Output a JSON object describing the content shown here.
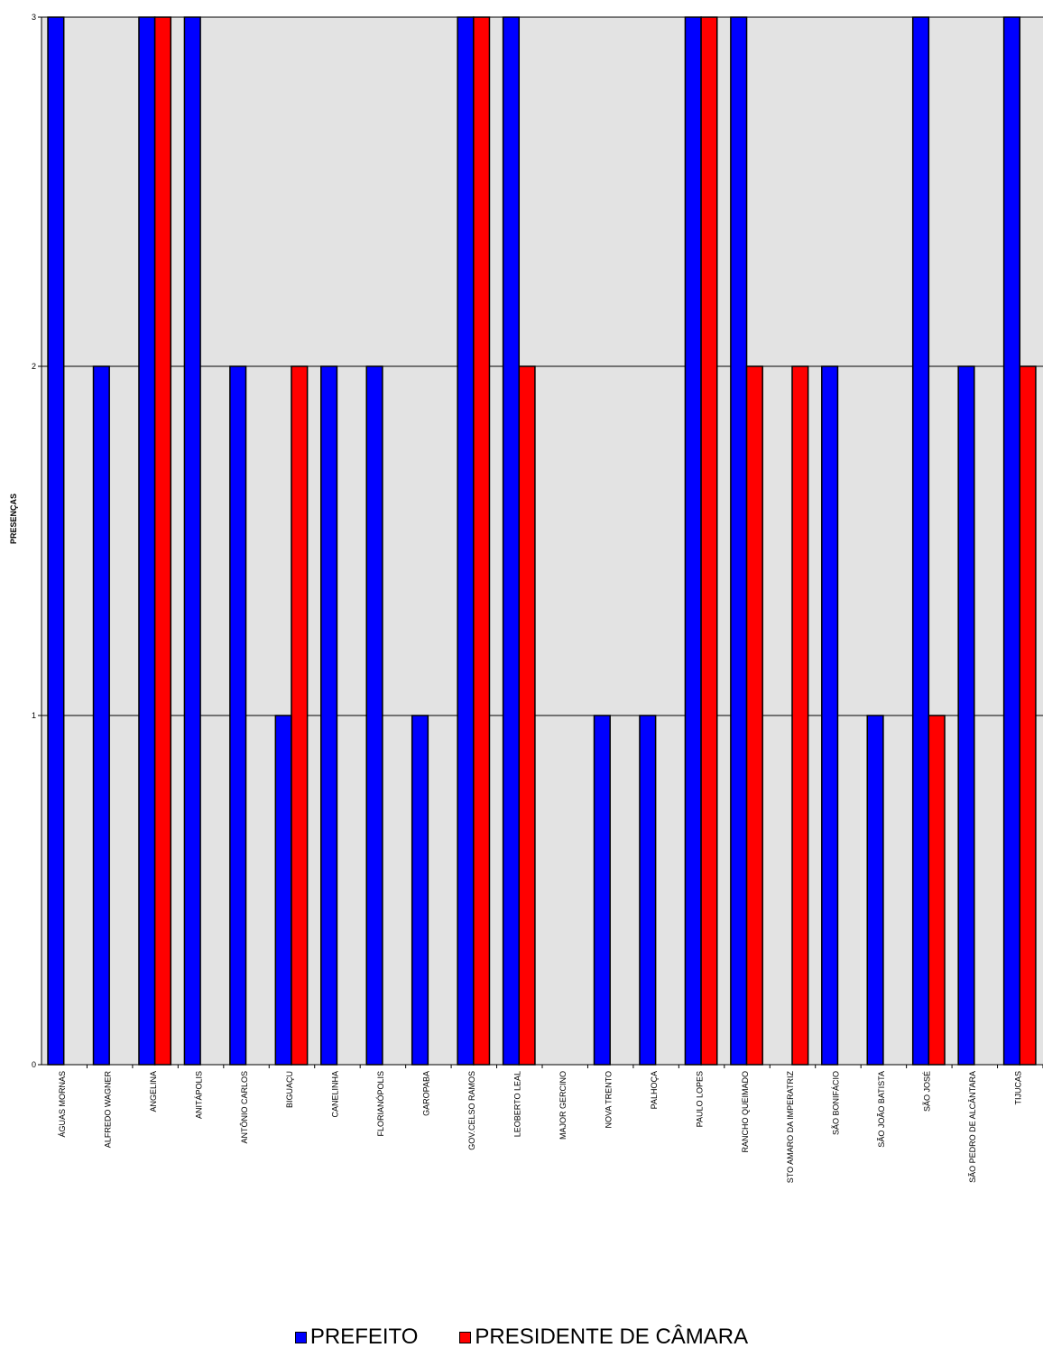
{
  "chart_data": {
    "type": "bar",
    "ylabel": "PRESENÇAS",
    "ylim": [
      0,
      3
    ],
    "yticks": [
      0,
      1,
      2,
      3
    ],
    "grid": true,
    "legend_position": "bottom",
    "plot_background": "#e3e3e3",
    "categories": [
      "ÁGUAS MORNAS",
      "ALFREDO WAGNER",
      "ANGELINA",
      "ANITÁPOLIS",
      "ANTÔNIO CARLOS",
      "BIGUAÇU",
      "CANELINHA",
      "FLORIANÓPOLIS",
      "GAROPABA",
      "GOV.CELSO RAMOS",
      "LEOBERTO LEAL",
      "MAJOR GERCINO",
      "NOVA TRENTO",
      "PALHOÇA",
      "PAULO LOPES",
      "RANCHO QUEIMADO",
      "STO AMARO DA IMPERATRIZ",
      "SÃO BONIFÁCIO",
      "SÃO JOÃO BATISTA",
      "SÃO JOSÉ",
      "SÃO PEDRO DE ALCÂNTARA",
      "TIJUCAS"
    ],
    "series": [
      {
        "name": "PREFEITO",
        "color": "#0000ff",
        "values": [
          3,
          2,
          3,
          3,
          2,
          1,
          2,
          2,
          1,
          3,
          3,
          0,
          1,
          1,
          3,
          3,
          0,
          2,
          1,
          3,
          2,
          3
        ]
      },
      {
        "name": "PRESIDENTE DE CÂMARA",
        "color": "#ff0000",
        "values": [
          0,
          0,
          3,
          0,
          0,
          2,
          0,
          0,
          0,
          3,
          2,
          0,
          0,
          0,
          3,
          2,
          2,
          0,
          0,
          1,
          0,
          2
        ]
      }
    ]
  }
}
